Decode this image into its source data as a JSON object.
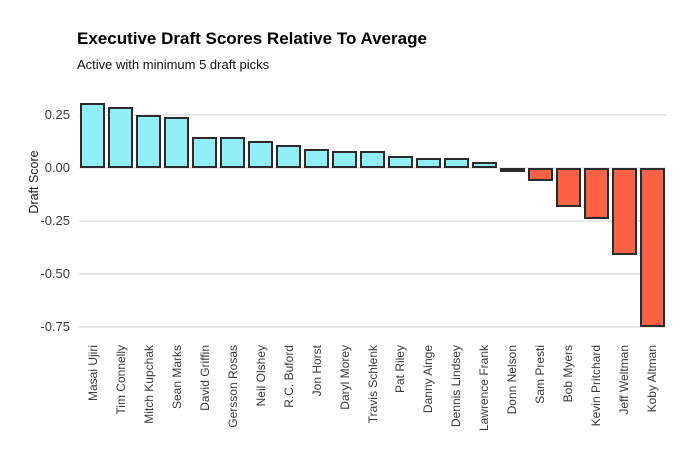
{
  "header": {
    "title": "Executive Draft Scores Relative To Average",
    "subtitle": "Active with minimum 5 draft picks"
  },
  "chart_data": {
    "type": "bar",
    "title": "Executive Draft Scores Relative To Average",
    "subtitle": "Active with minimum 5 draft picks",
    "xlabel": "",
    "ylabel": "Draft Score",
    "categories": [
      "Masai Ujiri",
      "Tim Connelly",
      "Mitch Kupchak",
      "Sean Marks",
      "David Griffin",
      "Gersson Rosas",
      "Neil Olshey",
      "R.C. Buford",
      "Jon Horst",
      "Daryl Morey",
      "Travis Schlenk",
      "Pat Riley",
      "Danny Ainge",
      "Dennis Lindsey",
      "Lawrence Frank",
      "Donn Nelson",
      "Sam Presti",
      "Bob Myers",
      "Kevin Pritchard",
      "Jeff Weltman",
      "Koby Altman"
    ],
    "values": [
      0.31,
      0.29,
      0.25,
      0.24,
      0.15,
      0.15,
      0.13,
      0.11,
      0.09,
      0.08,
      0.08,
      0.06,
      0.05,
      0.05,
      0.03,
      -0.01,
      -0.06,
      -0.18,
      -0.24,
      -0.41,
      -0.75
    ],
    "yticks": [
      0.25,
      0.0,
      -0.25,
      -0.5,
      -0.75
    ],
    "ytick_labels": [
      "0.25",
      "0.00",
      "-0.25",
      "-0.50",
      "-0.75"
    ],
    "ylim": [
      -0.8,
      0.36
    ],
    "grid": "horizontal",
    "legend": "none",
    "colors": {
      "positive_fill": "#8feef6",
      "negative_fill": "#fd6246",
      "bar_border": "#2b2b2b",
      "gridline": "#e9e9e9",
      "axis_text": "#3a3a3a",
      "title_text": "#000000"
    }
  }
}
